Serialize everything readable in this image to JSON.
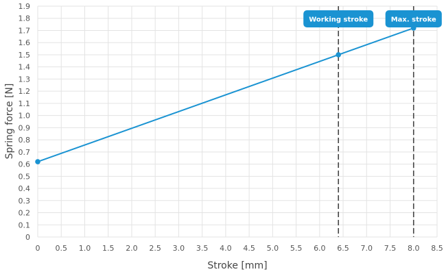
{
  "chart_data": {
    "type": "line",
    "xlabel": "Stroke [mm]",
    "ylabel": "Spring force [N]",
    "xlim": [
      0,
      8.5
    ],
    "ylim": [
      0,
      1.9
    ],
    "x_ticks": [
      "0",
      "0.5",
      "1.0",
      "1.5",
      "2.0",
      "2.5",
      "3.0",
      "3.5",
      "4.0",
      "4.5",
      "5.0",
      "5.5",
      "6.0",
      "6.5",
      "7.0",
      "7.5",
      "8.0",
      "8.5"
    ],
    "y_ticks": [
      "0",
      "0.1",
      "0.2",
      "0.3",
      "0.4",
      "0.5",
      "0.6",
      "0.7",
      "0.8",
      "0.9",
      "1.0",
      "1.1",
      "1.2",
      "1.3",
      "1.4",
      "1.5",
      "1.6",
      "1.7",
      "1.8",
      "1.9"
    ],
    "grid": true,
    "series": [
      {
        "color": "#1a93d2",
        "points": [
          {
            "x": 0,
            "y": 0.62
          },
          {
            "x": 6.4,
            "y": 1.5
          },
          {
            "x": 8.0,
            "y": 1.72
          }
        ]
      }
    ],
    "markers": [
      {
        "x": 6.4,
        "label": "Working stroke"
      },
      {
        "x": 8.0,
        "label": "Max. stroke"
      }
    ],
    "accent_color": "#1a93d2"
  }
}
